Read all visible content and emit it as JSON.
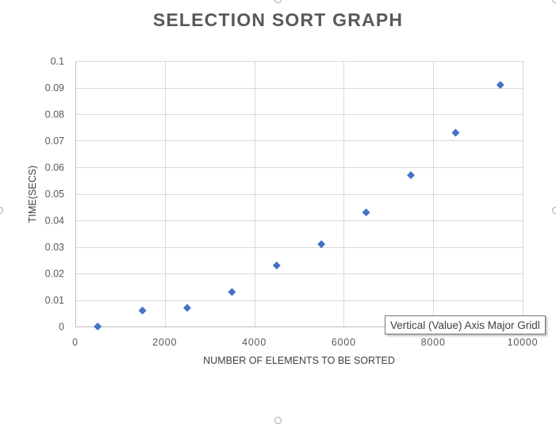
{
  "chart_data": {
    "type": "scatter",
    "title": "SELECTION SORT GRAPH",
    "xlabel": "NUMBER OF ELEMENTS TO BE SORTED",
    "ylabel": "TIME(SECS)",
    "xlim": [
      0,
      10000
    ],
    "ylim": [
      0,
      0.1
    ],
    "x_ticks": [
      "0",
      "2000",
      "4000",
      "6000",
      "8000",
      "10000"
    ],
    "y_ticks": [
      "0",
      "0.01",
      "0.02",
      "0.03",
      "0.04",
      "0.05",
      "0.06",
      "0.07",
      "0.08",
      "0.09",
      "0.1"
    ],
    "x_tick_values": [
      0,
      2000,
      4000,
      6000,
      8000,
      10000
    ],
    "y_tick_values": [
      0,
      0.01,
      0.02,
      0.03,
      0.04,
      0.05,
      0.06,
      0.07,
      0.08,
      0.09,
      0.1
    ],
    "grid": true,
    "marker": "diamond",
    "series_color": "#4472c4",
    "points": [
      {
        "x": 500,
        "y": 0.0
      },
      {
        "x": 1500,
        "y": 0.006
      },
      {
        "x": 2500,
        "y": 0.007
      },
      {
        "x": 3500,
        "y": 0.013
      },
      {
        "x": 4500,
        "y": 0.023
      },
      {
        "x": 5500,
        "y": 0.031
      },
      {
        "x": 6500,
        "y": 0.043
      },
      {
        "x": 7500,
        "y": 0.057
      },
      {
        "x": 8500,
        "y": 0.073
      },
      {
        "x": 9500,
        "y": 0.091
      }
    ]
  },
  "tooltip": {
    "text": "Vertical (Value) Axis Major Gridl"
  }
}
